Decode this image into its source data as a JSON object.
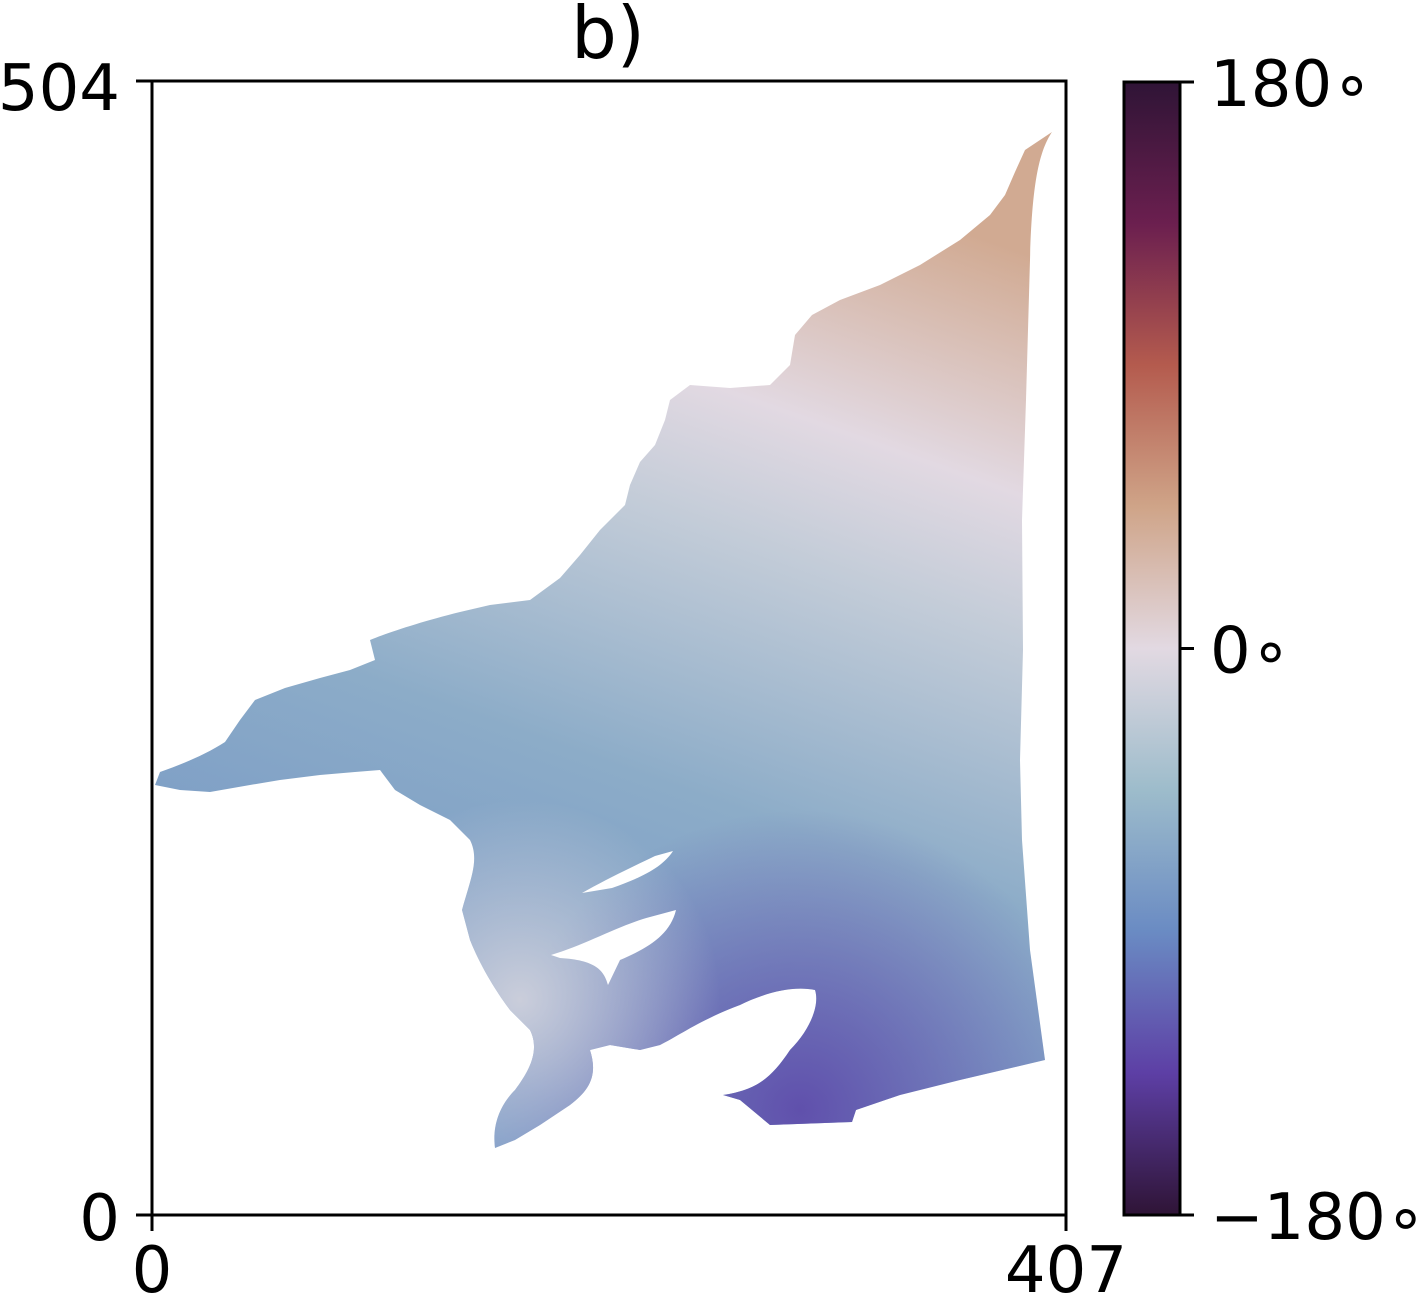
{
  "chart_data": {
    "type": "heatmap",
    "title": "b)",
    "xlabel": "",
    "ylabel": "",
    "xlim": [
      0,
      407
    ],
    "ylim": [
      0,
      504
    ],
    "x_ticks": [
      "0",
      "407"
    ],
    "y_ticks": [
      "0",
      "504"
    ],
    "grid": false,
    "colormap": "twilight_shifted",
    "colorbar": {
      "range": [
        -180,
        180
      ],
      "ticks": [
        {
          "value": 180,
          "label": "180∘"
        },
        {
          "value": 0,
          "label": "0∘"
        },
        {
          "value": -180,
          "label": "−180∘"
        }
      ],
      "stops": [
        {
          "value": 180,
          "color": "#2f1436"
        },
        {
          "value": 135,
          "color": "#6b1f4f"
        },
        {
          "value": 90,
          "color": "#b45b4e"
        },
        {
          "value": 45,
          "color": "#cfa488"
        },
        {
          "value": 0,
          "color": "#e2d9e2"
        },
        {
          "value": -45,
          "color": "#9dbccb"
        },
        {
          "value": -90,
          "color": "#6a8bc3"
        },
        {
          "value": -135,
          "color": "#5d3fa5"
        },
        {
          "value": -180,
          "color": "#2f1436"
        }
      ]
    },
    "regions": {
      "north_edge_value": 40,
      "center_value": -60,
      "southeast_value": -125,
      "southwest_value": -10
    }
  }
}
